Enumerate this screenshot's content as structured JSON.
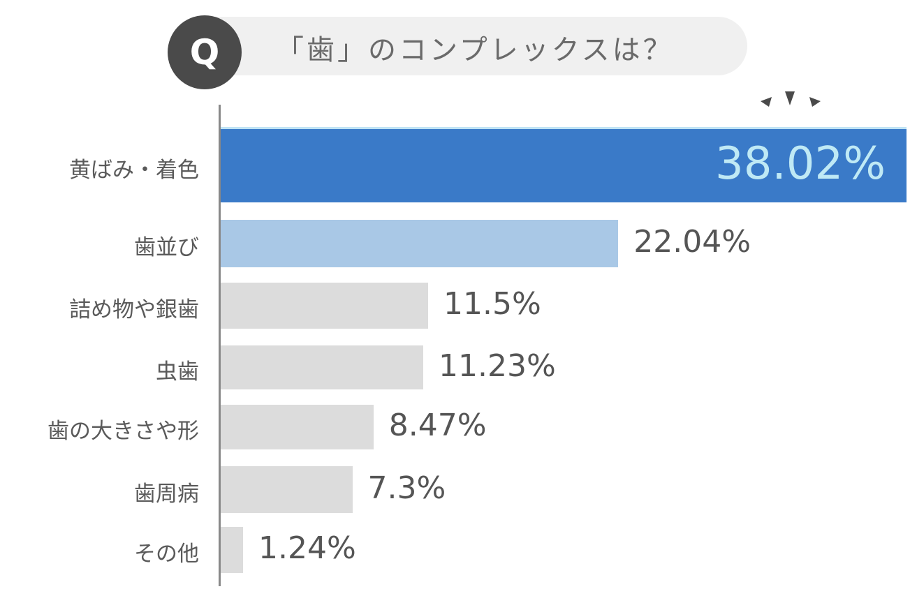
{
  "question": {
    "badge": "Q",
    "title": "「歯」のコンプレックスは？"
  },
  "colors": {
    "highlight": "#3a7ac8",
    "second": "#a9c8e6",
    "default": "#dcdcdc",
    "axis": "#888888",
    "badge": "#4a4a4a",
    "highlight_value_text": "#bfe9f5"
  },
  "chart_data": {
    "type": "bar",
    "orientation": "horizontal",
    "title": "「歯」のコンプレックスは？",
    "categories": [
      "黄ばみ・着色",
      "歯並び",
      "詰め物や銀歯",
      "虫歯",
      "歯の大きさや形",
      "歯周病",
      "その他"
    ],
    "values": [
      38.02,
      22.04,
      11.5,
      11.23,
      8.47,
      7.3,
      1.24
    ],
    "value_labels": [
      "38.02%",
      "22.04%",
      "11.5%",
      "11.23%",
      "8.47%",
      "7.3%",
      "1.24%"
    ],
    "unit": "%",
    "xlim": [
      0,
      38.02
    ],
    "grid": false,
    "legend": "none",
    "highlight_index": 0
  }
}
